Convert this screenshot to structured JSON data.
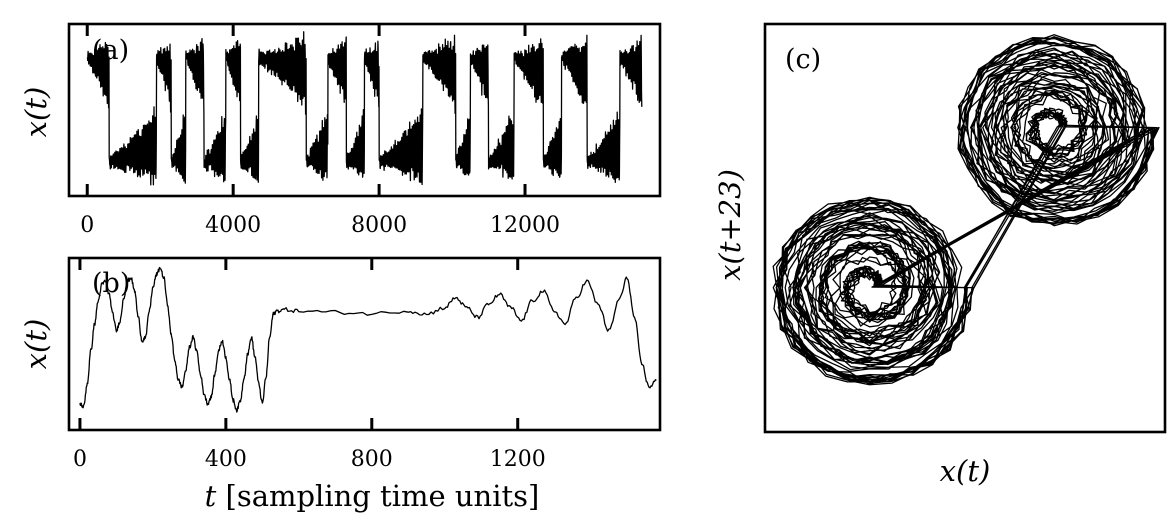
{
  "chart_data": [
    {
      "id": "a",
      "type": "line",
      "panel_label": "(a)",
      "ylabel": "x(t)",
      "xlabel": "",
      "xlim": [
        -500,
        15700
      ],
      "xticks": [
        0,
        4000,
        8000,
        12000
      ],
      "xtick_labels": [
        "0",
        "4000",
        "8000",
        "12000"
      ],
      "ylim": [
        -1.3,
        1.3
      ],
      "yticks": [],
      "style": "intermittent switching between two chaotic lobes with fast oscillation",
      "switch_times": [
        0,
        600,
        1900,
        2300,
        2700,
        3200,
        3800,
        4200,
        4700,
        6000,
        6600,
        7100,
        7600,
        8000,
        9200,
        10100,
        10500,
        11000,
        11700,
        12500,
        13000,
        13700,
        14600,
        15200
      ],
      "levels": [
        1,
        -1,
        1,
        -1,
        1,
        -1,
        1,
        -1,
        1,
        -1,
        1,
        -1,
        1,
        -1,
        1,
        -1,
        1,
        -1,
        1,
        -1,
        1,
        -1,
        1,
        -1
      ]
    },
    {
      "id": "b",
      "type": "line",
      "panel_label": "(b)",
      "ylabel": "x(t)",
      "xlabel": "t [sampling time units]",
      "xlim": [
        -30,
        1590
      ],
      "xticks": [
        0,
        400,
        800,
        1200
      ],
      "xtick_labels": [
        "0",
        "400",
        "800",
        "1200"
      ],
      "ylim": [
        -1.3,
        1.3
      ],
      "yticks": [],
      "x": [
        0,
        10,
        20,
        30,
        40,
        50,
        60,
        70,
        80,
        90,
        100,
        110,
        120,
        130,
        140,
        150,
        160,
        170,
        180,
        190,
        200,
        210,
        220,
        230,
        240,
        250,
        260,
        270,
        280,
        290,
        300,
        310,
        320,
        330,
        340,
        350,
        360,
        370,
        380,
        390,
        400,
        410,
        420,
        430,
        440,
        450,
        460,
        470,
        480,
        490,
        500,
        510,
        520,
        530,
        540,
        560,
        600,
        700,
        800,
        900,
        950,
        1000,
        1030,
        1060,
        1090,
        1120,
        1150,
        1180,
        1210,
        1240,
        1270,
        1300,
        1330,
        1360,
        1390,
        1420,
        1450,
        1480,
        1500,
        1520,
        1540,
        1560,
        1580
      ],
      "y": [
        -0.9,
        -0.95,
        -0.6,
        -0.1,
        0.3,
        0.65,
        0.9,
        0.95,
        0.75,
        0.45,
        0.2,
        0.35,
        0.7,
        0.95,
        1.0,
        0.8,
        0.4,
        0.05,
        0.1,
        0.5,
        0.85,
        1.05,
        1.15,
        1.0,
        0.6,
        0.15,
        -0.25,
        -0.55,
        -0.65,
        -0.4,
        -0.05,
        0.1,
        -0.1,
        -0.45,
        -0.75,
        -0.9,
        -0.8,
        -0.45,
        -0.1,
        0.05,
        -0.2,
        -0.55,
        -0.85,
        -1.0,
        -0.85,
        -0.5,
        -0.15,
        0.1,
        -0.2,
        -0.6,
        -0.9,
        -0.5,
        0.1,
        0.45,
        0.5,
        0.52,
        0.5,
        0.48,
        0.46,
        0.5,
        0.45,
        0.55,
        0.7,
        0.55,
        0.4,
        0.6,
        0.75,
        0.55,
        0.35,
        0.65,
        0.8,
        0.5,
        0.3,
        0.7,
        0.95,
        0.6,
        0.2,
        0.7,
        1.0,
        0.4,
        -0.3,
        -0.65,
        -0.55
      ]
    },
    {
      "id": "c",
      "type": "line",
      "panel_label": "(c)",
      "xlabel": "x(t)",
      "ylabel": "x(t+23)",
      "xlim": [
        -1.3,
        1.3
      ],
      "ylim": [
        -1.3,
        1.3
      ],
      "xticks": [],
      "yticks": [],
      "style": "delay embedding: two spiral attractor lobes",
      "lobes": [
        {
          "center": [
            0.58,
            0.64
          ],
          "radius_range": [
            0.05,
            0.65
          ]
        },
        {
          "center": [
            -0.62,
            -0.38
          ],
          "radius_range": [
            0.05,
            0.65
          ]
        }
      ]
    }
  ]
}
